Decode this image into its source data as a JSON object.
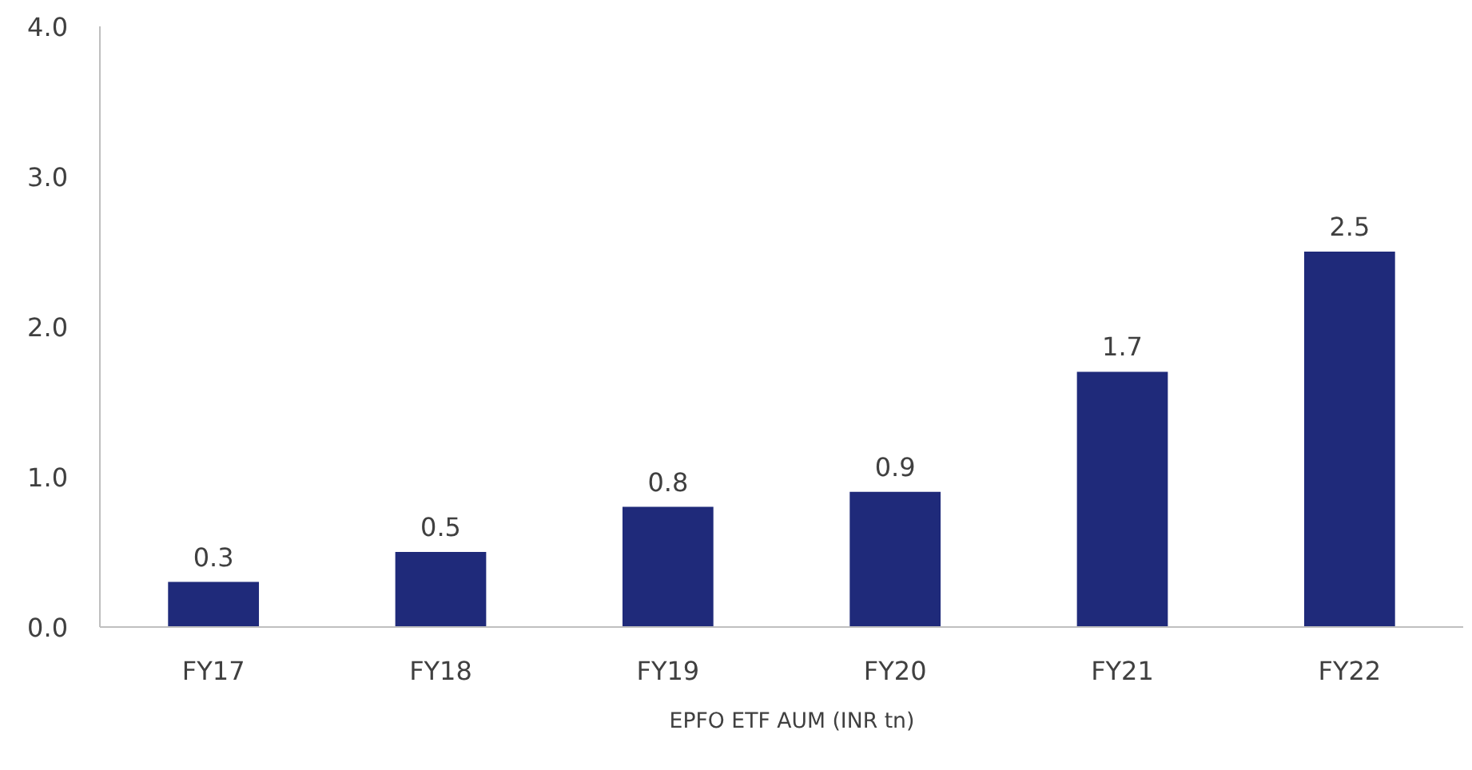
{
  "chart_data": {
    "type": "bar",
    "categories": [
      "FY17",
      "FY18",
      "FY19",
      "FY20",
      "FY21",
      "FY22"
    ],
    "series": [
      {
        "name": "EPFO ETF AUM (INR tn)",
        "color": "#1f2a7a",
        "values": [
          0.3,
          0.5,
          0.8,
          0.9,
          1.7,
          2.5
        ]
      }
    ],
    "ylim": [
      0,
      4
    ],
    "yticks": [
      {
        "value": 0,
        "label": "0.0"
      },
      {
        "value": 1,
        "label": "1.0"
      },
      {
        "value": 2,
        "label": "2.0"
      },
      {
        "value": 3,
        "label": "3.0"
      },
      {
        "value": 4,
        "label": "4.0"
      }
    ],
    "data_labels": true,
    "grid": false,
    "legend": "bottom"
  }
}
